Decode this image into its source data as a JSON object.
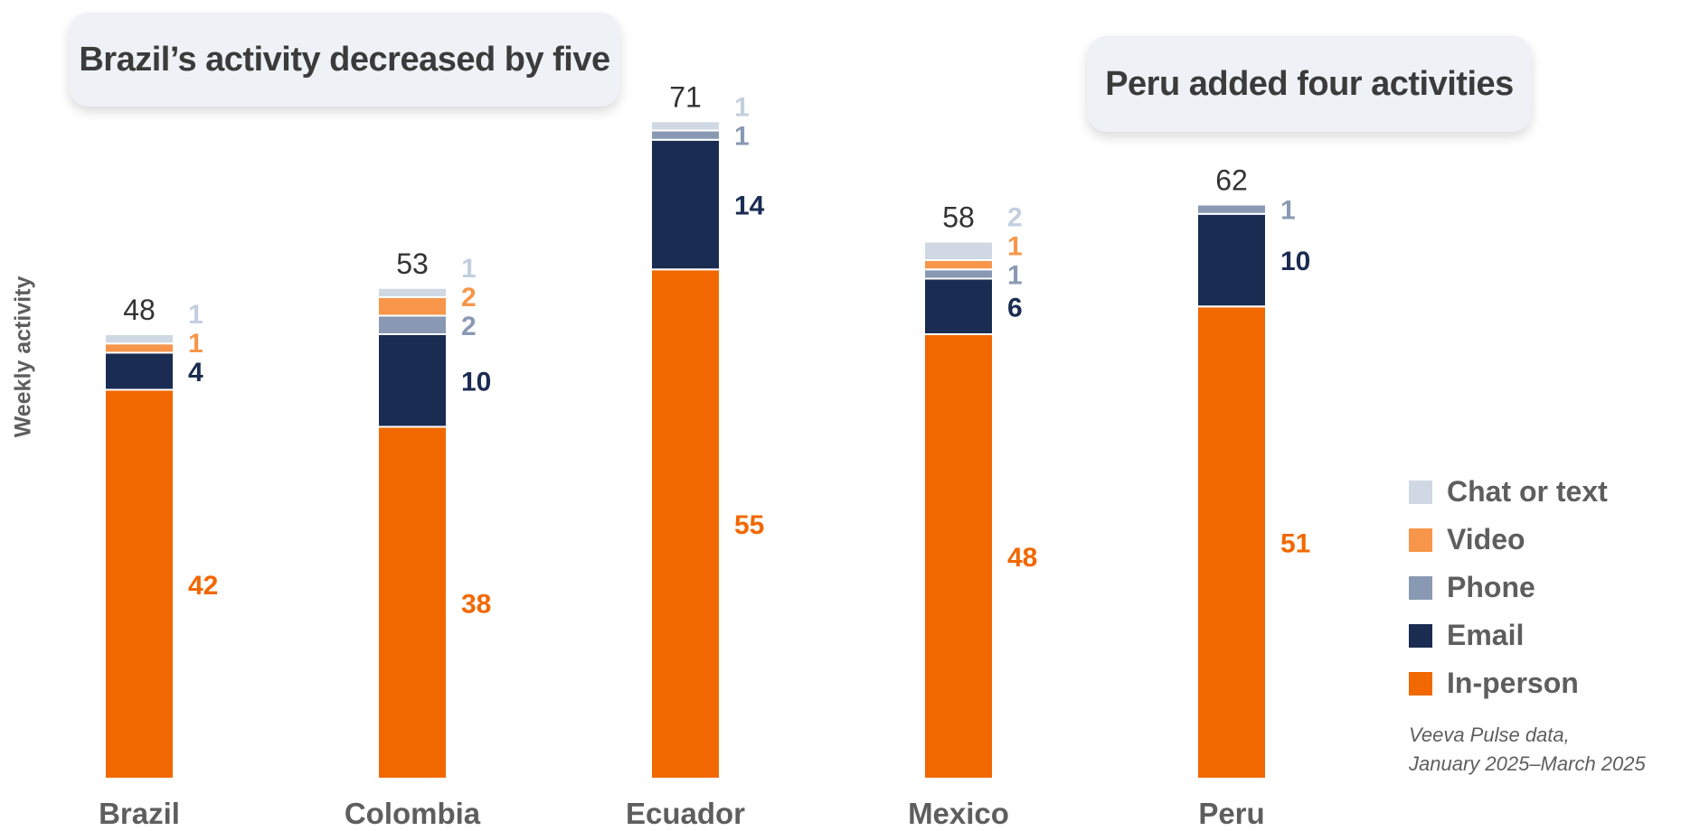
{
  "callouts": [
    "Brazil’s activity decreased by five",
    "Peru added four activities"
  ],
  "source": {
    "line1": "Veeva Pulse data,",
    "line2": "January 2025–March 2025"
  },
  "colors": {
    "chat": "#d0d8e3",
    "video": "#f7964a",
    "phone": "#8a99b3",
    "email": "#1b2c52",
    "inperson": "#f26800",
    "axis_text": "#5e5e5e",
    "total_text": "#333333"
  },
  "chart_data": {
    "type": "bar",
    "stacked": true,
    "ylabel": "Weekly activity",
    "categories": [
      "Brazil",
      "Colombia",
      "Ecuador",
      "Mexico",
      "Peru"
    ],
    "totals": [
      48,
      53,
      71,
      58,
      62
    ],
    "series": [
      {
        "name": "In-person",
        "key": "inperson",
        "values": [
          42,
          38,
          55,
          48,
          51
        ]
      },
      {
        "name": "Email",
        "key": "email",
        "values": [
          4,
          10,
          14,
          6,
          10
        ]
      },
      {
        "name": "Phone",
        "key": "phone",
        "values": [
          null,
          2,
          1,
          1,
          1
        ]
      },
      {
        "name": "Video",
        "key": "video",
        "values": [
          1,
          2,
          null,
          1,
          null
        ]
      },
      {
        "name": "Chat or text",
        "key": "chat",
        "values": [
          1,
          1,
          1,
          2,
          null
        ]
      }
    ],
    "legend_order": [
      "Chat or text",
      "Video",
      "Phone",
      "Email",
      "In-person"
    ],
    "legend_position": "right",
    "grid": false
  }
}
